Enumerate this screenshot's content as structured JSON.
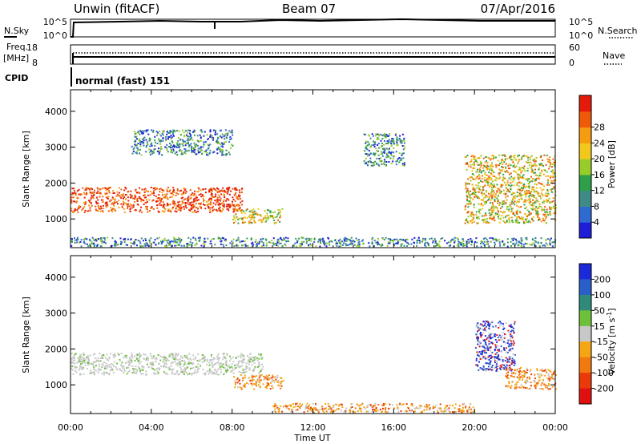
{
  "header": {
    "station": "Unwin (fitACF)",
    "beam": "Beam 07",
    "date": "07/Apr/2016"
  },
  "strips": {
    "nsky": {
      "label": "N.Sky",
      "right_label": "N.Search",
      "ticks": [
        "10^5",
        "10^0"
      ]
    },
    "freq": {
      "label_line1": "Freq.",
      "label_line2": "[MHz]",
      "right_label": "Nave",
      "left_ticks": [
        "18",
        "8"
      ],
      "right_ticks": [
        "60",
        "0"
      ]
    },
    "cpid": {
      "label": "CPID",
      "text": "normal (fast) 151"
    }
  },
  "chart_data": [
    {
      "type": "heatmap",
      "panel": "power",
      "ylabel": "Slant Range [km]",
      "yticks": [
        "1000",
        "2000",
        "3000",
        "4000"
      ],
      "ylim": [
        200,
        4600
      ],
      "colorbar_label": "Power [dB]",
      "colorbar_ticks": [
        "4",
        "8",
        "12",
        "16",
        "20",
        "24",
        "28"
      ],
      "colors": [
        "#1e1ed8",
        "#2f6ad0",
        "#3f8a86",
        "#2ea04a",
        "#98cc2a",
        "#f2c81c",
        "#f59c10",
        "#ee5a0a",
        "#e41a0a"
      ],
      "features": [
        {
          "time_start": 0.0,
          "time_end": 8.5,
          "range_start": 1200,
          "range_end": 1900,
          "level": "strong"
        },
        {
          "time_start": 3.0,
          "time_end": 8.0,
          "range_start": 2800,
          "range_end": 3500,
          "level": "weak"
        },
        {
          "time_start": 8.0,
          "time_end": 10.5,
          "range_start": 900,
          "range_end": 1300,
          "level": "medium"
        },
        {
          "time_start": 14.5,
          "time_end": 16.5,
          "range_start": 2500,
          "range_end": 3400,
          "level": "weak"
        },
        {
          "time_start": 19.5,
          "time_end": 24.0,
          "range_start": 900,
          "range_end": 2800,
          "level": "medium"
        },
        {
          "time_start": 0.0,
          "time_end": 24.0,
          "range_start": 250,
          "range_end": 500,
          "level": "weak"
        }
      ]
    },
    {
      "type": "heatmap",
      "panel": "velocity",
      "ylabel": "Slant Range [km]",
      "yticks": [
        "1000",
        "2000",
        "3000",
        "4000"
      ],
      "ylim": [
        200,
        4600
      ],
      "xlabel": "Time UT",
      "xticks": [
        "00:00",
        "04:00",
        "08:00",
        "12:00",
        "16:00",
        "20:00",
        "00:00"
      ],
      "xlim": [
        0,
        24
      ],
      "colorbar_label": "Velocity [m s",
      "colorbar_label_sup": "-1",
      "colorbar_label_end": "]",
      "colorbar_ticks": [
        "200",
        "100",
        "50",
        "15",
        "-15",
        "-50",
        "-100",
        "-200"
      ],
      "colors": [
        "#1a2ad8",
        "#2a5ec8",
        "#2f8a7a",
        "#6cc03a",
        "#c8c8c8",
        "#f5a614",
        "#f07a10",
        "#ea3a0a",
        "#e01010"
      ],
      "features": [
        {
          "time_start": 0.0,
          "time_end": 9.5,
          "range_start": 1300,
          "range_end": 1900,
          "level": "ground"
        },
        {
          "time_start": 8.0,
          "time_end": 10.5,
          "range_start": 900,
          "range_end": 1300,
          "level": "negative"
        },
        {
          "time_start": 20.0,
          "time_end": 22.0,
          "range_start": 1400,
          "range_end": 2800,
          "level": "positive"
        },
        {
          "time_start": 21.5,
          "time_end": 24.0,
          "range_start": 900,
          "range_end": 1500,
          "level": "negative"
        },
        {
          "time_start": 10.0,
          "time_end": 20.0,
          "range_start": 250,
          "range_end": 500,
          "level": "negative"
        }
      ]
    }
  ]
}
